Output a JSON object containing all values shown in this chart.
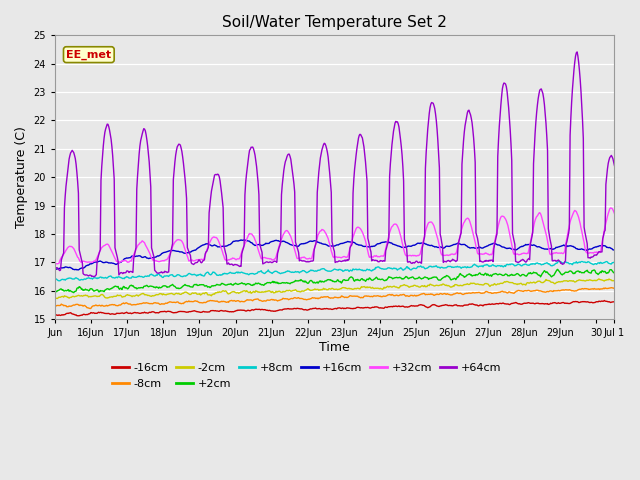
{
  "title": "Soil/Water Temperature Set 2",
  "xlabel": "Time",
  "ylabel": "Temperature (C)",
  "ylim": [
    15.0,
    25.0
  ],
  "yticks": [
    15.0,
    16.0,
    17.0,
    18.0,
    19.0,
    20.0,
    21.0,
    22.0,
    23.0,
    24.0,
    25.0
  ],
  "x_tick_labels": [
    "Jun",
    "16Jun",
    "17Jun",
    "18Jun",
    "19Jun",
    "20Jun",
    "21Jun",
    "22Jun",
    "23Jun",
    "24Jun",
    "25Jun",
    "26Jun",
    "27Jun",
    "28Jun",
    "29Jun",
    "30",
    "Jul 1"
  ],
  "annotation_text": "EE_met",
  "annotation_bg": "#ffffcc",
  "annotation_border": "#888800",
  "annotation_text_color": "#cc0000",
  "bg_color": "#e8e8e8",
  "plot_bg_color": "#e8e8e8",
  "colors": {
    "-16cm": "#cc0000",
    "-8cm": "#ff8800",
    "-2cm": "#cccc00",
    "+2cm": "#00cc00",
    "+8cm": "#00cccc",
    "+16cm": "#0000cc",
    "+32cm": "#ff44ff",
    "+64cm": "#9900cc"
  },
  "n_points": 720,
  "line_width": 1.0,
  "total_days": 15.5
}
